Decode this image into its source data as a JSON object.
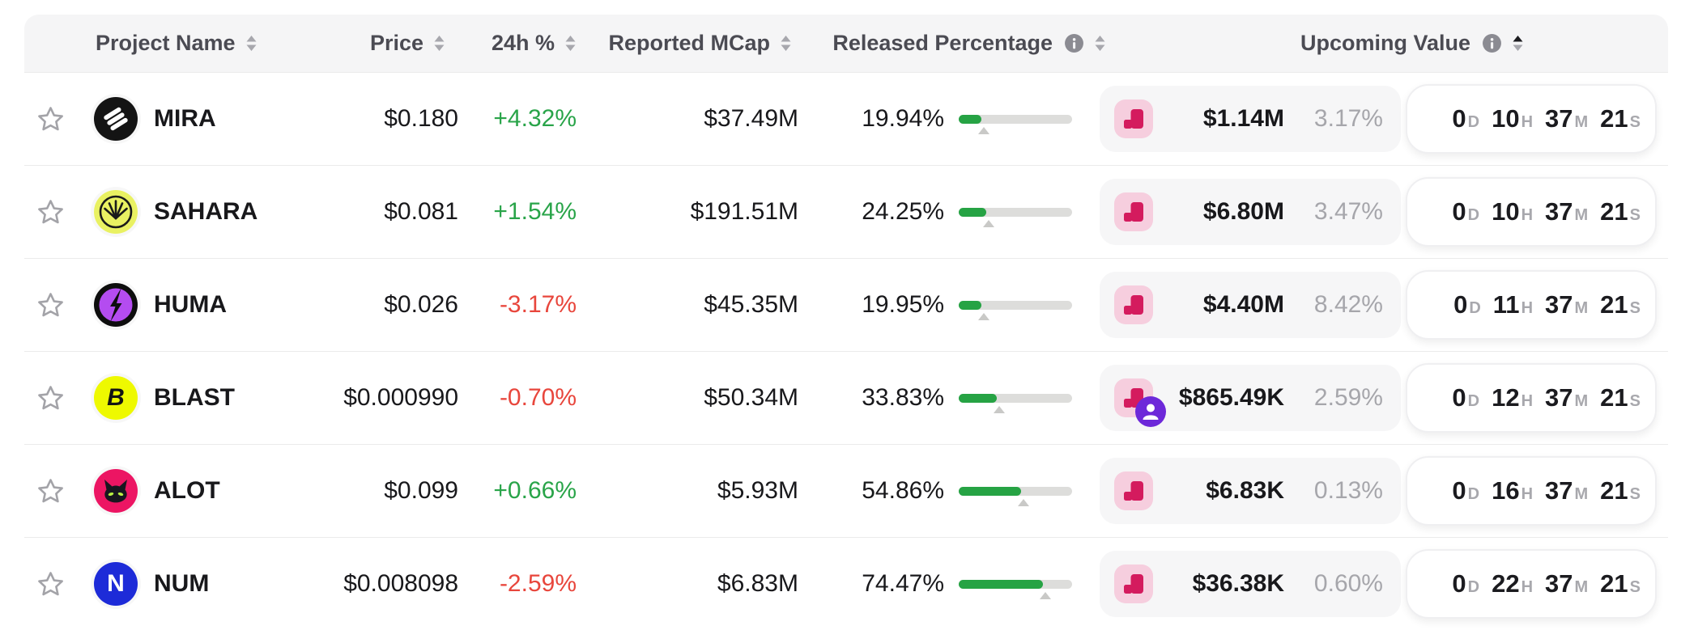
{
  "header": {
    "columns": [
      {
        "id": "name",
        "label": "Project Name",
        "sortable": true,
        "info": false,
        "sort": null
      },
      {
        "id": "price",
        "label": "Price",
        "sortable": true,
        "info": false,
        "sort": null
      },
      {
        "id": "change",
        "label": "24h %",
        "sortable": true,
        "info": false,
        "sort": null
      },
      {
        "id": "mcap",
        "label": "Reported MCap",
        "sortable": true,
        "info": false,
        "sort": null
      },
      {
        "id": "released",
        "label": "Released Percentage",
        "sortable": true,
        "info": true,
        "sort": null
      },
      {
        "id": "upcoming",
        "label": "Upcoming Value",
        "sortable": true,
        "info": true,
        "sort": "asc"
      }
    ]
  },
  "countdown_units": [
    "D",
    "H",
    "M",
    "S"
  ],
  "colors": {
    "positive": "#29a449",
    "negative": "#e8463c",
    "bar_fill": "#26a344",
    "bar_track": "#dddddb",
    "unlock_icon_bg": "#f6cede",
    "unlock_icon_fg": "#d41b5e",
    "badge_purple": "#6d28d9",
    "header_bg": "#f5f5f6",
    "divider": "#ebebeb",
    "muted_text": "#a6a6ab"
  },
  "rows": [
    {
      "name": "MIRA",
      "logo": {
        "type": "mira",
        "bg": "#141414",
        "fg": "#ffffff",
        "letter": ""
      },
      "price": "$0.180",
      "change": "+4.32%",
      "direction": "up",
      "mcap": "$37.49M",
      "released_label": "19.94%",
      "released_pct": 19.94,
      "unlock_icon": "chart-step",
      "badge": null,
      "upcoming_value": "$1.14M",
      "upcoming_pct_label": "3.17%",
      "countdown": [
        "0",
        "10",
        "37",
        "21"
      ]
    },
    {
      "name": "SAHARA",
      "logo": {
        "type": "sahara",
        "bg": "#e9f162",
        "fg": "#1a1a1a",
        "letter": ""
      },
      "price": "$0.081",
      "change": "+1.54%",
      "direction": "up",
      "mcap": "$191.51M",
      "released_label": "24.25%",
      "released_pct": 24.25,
      "unlock_icon": "chart-step",
      "badge": null,
      "upcoming_value": "$6.80M",
      "upcoming_pct_label": "3.47%",
      "countdown": [
        "0",
        "10",
        "37",
        "21"
      ]
    },
    {
      "name": "HUMA",
      "logo": {
        "type": "huma",
        "bg": "#0d0d0d",
        "fg": "#b44cf0",
        "letter": ""
      },
      "price": "$0.026",
      "change": "-3.17%",
      "direction": "down",
      "mcap": "$45.35M",
      "released_label": "19.95%",
      "released_pct": 19.95,
      "unlock_icon": "chart-step",
      "badge": null,
      "upcoming_value": "$4.40M",
      "upcoming_pct_label": "8.42%",
      "countdown": [
        "0",
        "11",
        "37",
        "21"
      ]
    },
    {
      "name": "BLAST",
      "logo": {
        "type": "letter",
        "bg": "#eef900",
        "fg": "#141414",
        "letter": "B",
        "italic": true
      },
      "price": "$0.000990",
      "change": "-0.70%",
      "direction": "down",
      "mcap": "$50.34M",
      "released_label": "33.83%",
      "released_pct": 33.83,
      "unlock_icon": "chart-step",
      "badge": "insider",
      "upcoming_value": "$865.49K",
      "upcoming_pct_label": "2.59%",
      "countdown": [
        "0",
        "12",
        "37",
        "21"
      ]
    },
    {
      "name": "ALOT",
      "logo": {
        "type": "alot",
        "bg": "#ec1563",
        "fg": "#17171f",
        "letter": ""
      },
      "price": "$0.099",
      "change": "+0.66%",
      "direction": "up",
      "mcap": "$5.93M",
      "released_label": "54.86%",
      "released_pct": 54.86,
      "unlock_icon": "chart-step",
      "badge": null,
      "upcoming_value": "$6.83K",
      "upcoming_pct_label": "0.13%",
      "countdown": [
        "0",
        "16",
        "37",
        "21"
      ]
    },
    {
      "name": "NUM",
      "logo": {
        "type": "letter",
        "bg": "#1d2bd8",
        "fg": "#ffffff",
        "letter": "N",
        "italic": false
      },
      "price": "$0.008098",
      "change": "-2.59%",
      "direction": "down",
      "mcap": "$6.83M",
      "released_label": "74.47%",
      "released_pct": 74.47,
      "unlock_icon": "chart-step",
      "badge": null,
      "upcoming_value": "$36.38K",
      "upcoming_pct_label": "0.60%",
      "countdown": [
        "0",
        "22",
        "37",
        "21"
      ]
    }
  ]
}
